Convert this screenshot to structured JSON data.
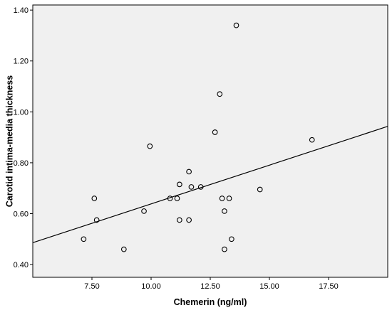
{
  "chart_data": {
    "type": "scatter",
    "xlabel": "Chemerin (ng/ml)",
    "ylabel": "Carotid intima-media thickness",
    "xlim": [
      5.0,
      20.0
    ],
    "ylim": [
      0.35,
      1.42
    ],
    "x_ticks": [
      7.5,
      10.0,
      12.5,
      15.0,
      17.5
    ],
    "x_tick_labels": [
      "7.50",
      "10.00",
      "12.50",
      "15.00",
      "17.50"
    ],
    "y_ticks": [
      0.4,
      0.6,
      0.8,
      1.0,
      1.2,
      1.4
    ],
    "y_tick_labels": [
      "0.40",
      "0.60",
      "0.80",
      "1.00",
      "1.20",
      "1.40"
    ],
    "grid": false,
    "background_color": "#f0f0f0",
    "marker": "open-circle",
    "points": [
      {
        "x": 7.15,
        "y": 0.5
      },
      {
        "x": 7.6,
        "y": 0.66
      },
      {
        "x": 7.7,
        "y": 0.575
      },
      {
        "x": 8.85,
        "y": 0.46
      },
      {
        "x": 9.7,
        "y": 0.61
      },
      {
        "x": 9.95,
        "y": 0.865
      },
      {
        "x": 10.8,
        "y": 0.66
      },
      {
        "x": 11.1,
        "y": 0.66
      },
      {
        "x": 11.2,
        "y": 0.715
      },
      {
        "x": 11.2,
        "y": 0.575
      },
      {
        "x": 11.6,
        "y": 0.575
      },
      {
        "x": 11.6,
        "y": 0.765
      },
      {
        "x": 11.7,
        "y": 0.705
      },
      {
        "x": 12.1,
        "y": 0.705
      },
      {
        "x": 12.7,
        "y": 0.92
      },
      {
        "x": 12.9,
        "y": 1.07
      },
      {
        "x": 13.0,
        "y": 0.66
      },
      {
        "x": 13.1,
        "y": 0.61
      },
      {
        "x": 13.1,
        "y": 0.46
      },
      {
        "x": 13.3,
        "y": 0.66
      },
      {
        "x": 13.4,
        "y": 0.5
      },
      {
        "x": 13.6,
        "y": 1.34
      },
      {
        "x": 14.6,
        "y": 0.695
      },
      {
        "x": 16.8,
        "y": 0.89
      }
    ],
    "fit_line": {
      "x": [
        5.0,
        20.0
      ],
      "y": [
        0.486,
        0.943
      ]
    }
  }
}
